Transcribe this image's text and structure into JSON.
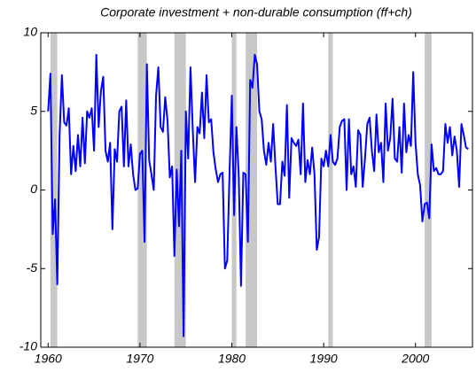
{
  "chart_data": {
    "type": "line",
    "title": "Corporate investment + non-durable consumption (ff+ch)",
    "x": [
      1960,
      1960.25,
      1960.5,
      1960.75,
      1961,
      1961.25,
      1961.5,
      1961.75,
      1962,
      1962.25,
      1962.5,
      1962.75,
      1963,
      1963.25,
      1963.5,
      1963.75,
      1964,
      1964.25,
      1964.5,
      1964.75,
      1965,
      1965.25,
      1965.5,
      1965.75,
      1966,
      1966.25,
      1966.5,
      1966.75,
      1967,
      1967.25,
      1967.5,
      1967.75,
      1968,
      1968.25,
      1968.5,
      1968.75,
      1969,
      1969.25,
      1969.5,
      1969.75,
      1970,
      1970.25,
      1970.5,
      1970.75,
      1971,
      1971.25,
      1971.5,
      1971.75,
      1972,
      1972.25,
      1972.5,
      1972.75,
      1973,
      1973.25,
      1973.5,
      1973.75,
      1974,
      1974.25,
      1974.5,
      1974.75,
      1975,
      1975.25,
      1975.5,
      1975.75,
      1976,
      1976.25,
      1976.5,
      1976.75,
      1977,
      1977.25,
      1977.5,
      1977.75,
      1978,
      1978.25,
      1978.5,
      1978.75,
      1979,
      1979.25,
      1979.5,
      1979.75,
      1980,
      1980.25,
      1980.5,
      1980.75,
      1981,
      1981.25,
      1981.5,
      1981.75,
      1982,
      1982.25,
      1982.5,
      1982.75,
      1983,
      1983.25,
      1983.5,
      1983.75,
      1984,
      1984.25,
      1984.5,
      1984.75,
      1985,
      1985.25,
      1985.5,
      1985.75,
      1986,
      1986.25,
      1986.5,
      1986.75,
      1987,
      1987.25,
      1987.5,
      1987.75,
      1988,
      1988.25,
      1988.5,
      1988.75,
      1989,
      1989.25,
      1989.5,
      1989.75,
      1990,
      1990.25,
      1990.5,
      1990.75,
      1991,
      1991.25,
      1991.5,
      1991.75,
      1992,
      1992.25,
      1992.5,
      1992.75,
      1993,
      1993.25,
      1993.5,
      1993.75,
      1994,
      1994.25,
      1994.5,
      1994.75,
      1995,
      1995.25,
      1995.5,
      1995.75,
      1996,
      1996.25,
      1996.5,
      1996.75,
      1997,
      1997.25,
      1997.5,
      1997.75,
      1998,
      1998.25,
      1998.5,
      1998.75,
      1999,
      1999.25,
      1999.5,
      1999.75,
      2000,
      2000.25,
      2000.5,
      2000.75,
      2001,
      2001.25,
      2001.5,
      2001.75,
      2002,
      2002.25,
      2002.5,
      2002.75,
      2003,
      2003.25,
      2003.5,
      2003.75,
      2004,
      2004.25,
      2004.5,
      2004.75,
      2005,
      2005.25,
      2005.5,
      2005.75
    ],
    "series": [
      {
        "color": "#0000ff",
        "values": [
          5.0,
          7.4,
          -2.8,
          -0.6,
          -6.0,
          3.5,
          7.3,
          4.3,
          4.1,
          5.2,
          1.0,
          2.8,
          1.2,
          3.5,
          1.5,
          4.6,
          1.7,
          5.0,
          4.6,
          5.2,
          2.5,
          8.6,
          4.0,
          6.3,
          7.2,
          2.5,
          1.8,
          3.0,
          -2.5,
          2.6,
          1.8,
          5.0,
          5.3,
          1.5,
          5.7,
          1.5,
          2.9,
          1.0,
          0.0,
          0.1,
          2.3,
          2.5,
          -3.3,
          8.0,
          1.9,
          1.0,
          0.0,
          6.0,
          7.8,
          4.0,
          3.7,
          5.9,
          4.4,
          0.8,
          1.5,
          -4.2,
          1.3,
          -2.3,
          2.5,
          -9.3,
          5.0,
          2.0,
          7.8,
          3.8,
          0.5,
          4.0,
          3.6,
          6.2,
          3.3,
          7.3,
          4.3,
          4.5,
          2.4,
          1.3,
          0.5,
          1.0,
          1.1,
          -5.0,
          -4.5,
          1.0,
          6.0,
          -1.6,
          4.0,
          1.0,
          -6.1,
          1.1,
          1.0,
          -3.3,
          7.0,
          6.5,
          8.6,
          8.0,
          5.0,
          4.5,
          2.5,
          1.6,
          3.0,
          1.8,
          4.2,
          1.5,
          -0.9,
          -0.9,
          1.8,
          0.9,
          5.4,
          -0.5,
          3.3,
          3.0,
          2.8,
          3.2,
          1.0,
          5.5,
          0.5,
          1.9,
          1.0,
          2.7,
          1.0,
          -3.8,
          -3.0,
          2.0,
          1.5,
          2.5,
          1.5,
          3.5,
          1.8,
          1.6,
          2.0,
          4.0,
          4.4,
          4.5,
          0.0,
          4.5,
          1.0,
          1.5,
          0.2,
          3.8,
          3.5,
          0.2,
          2.0,
          4.2,
          4.6,
          2.5,
          1.2,
          4.8,
          2.4,
          3.0,
          0.5,
          5.5,
          2.5,
          3.3,
          5.8,
          2.0,
          1.8,
          4.0,
          1.1,
          5.5,
          2.4,
          3.5,
          2.8,
          7.5,
          3.0,
          1.0,
          0.3,
          -2.0,
          -0.9,
          -0.8,
          -1.8,
          2.9,
          1.2,
          1.4,
          1.0,
          1.0,
          1.2,
          4.2,
          3.0,
          4.0,
          2.2,
          3.4,
          2.5,
          0.2,
          4.2,
          3.5,
          2.7,
          2.6
        ]
      }
    ],
    "recessions": [
      [
        1960.25,
        1961.0
      ],
      [
        1969.75,
        1970.75
      ],
      [
        1973.75,
        1975.0
      ],
      [
        1980.0,
        1980.5
      ],
      [
        1981.5,
        1982.75
      ],
      [
        1990.5,
        1991.0
      ],
      [
        2001.0,
        2001.75
      ]
    ],
    "recession_color": "#c8c8c8",
    "xlim": [
      1959.2,
      2006.2
    ],
    "xticks": [
      1960,
      1970,
      1980,
      1990,
      2000
    ],
    "ylim": [
      -10,
      10
    ],
    "yticks": [
      -10,
      -5,
      0,
      5,
      10
    ]
  }
}
